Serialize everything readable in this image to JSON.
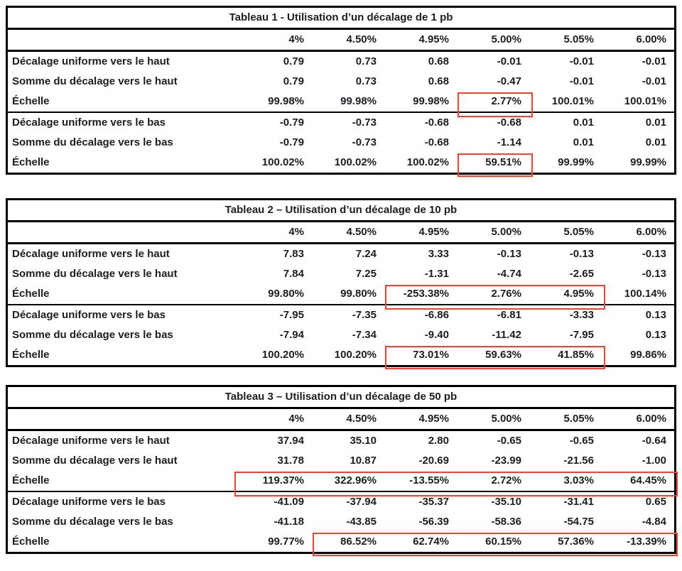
{
  "colors": {
    "text": "#1d1d22",
    "table_border": "#000000",
    "highlight_box": "#f9402f",
    "background": "#ffffff"
  },
  "columns": [
    "4%",
    "4.50%",
    "4.95%",
    "5.00%",
    "5.05%",
    "6.00%"
  ],
  "tables": [
    {
      "title": "Tableau 1 - Utilisation d’un décalage de 1 pb",
      "rows": [
        {
          "label": "Décalage uniforme vers le haut",
          "values": [
            "0.79",
            "0.73",
            "0.68",
            "-0.01",
            "-0.01",
            "-0.01"
          ]
        },
        {
          "label": "Somme du décalage vers le haut",
          "values": [
            "0.79",
            "0.73",
            "0.68",
            "-0.47",
            "-0.01",
            "-0.01"
          ]
        },
        {
          "label": "Échelle",
          "values": [
            "99.98%",
            "99.98%",
            "99.98%",
            "2.77%",
            "100.01%",
            "100.01%"
          ],
          "thick_border_below": true,
          "highlight": {
            "from": 3,
            "to": 3
          }
        },
        {
          "label": "Décalage uniforme vers le bas",
          "values": [
            "-0.79",
            "-0.73",
            "-0.68",
            "-0.68",
            "0.01",
            "0.01"
          ]
        },
        {
          "label": "Somme du décalage vers le bas",
          "values": [
            "-0.79",
            "-0.73",
            "-0.68",
            "-1.14",
            "0.01",
            "0.01"
          ]
        },
        {
          "label": "Échelle",
          "values": [
            "100.02%",
            "100.02%",
            "100.02%",
            "59.51%",
            "99.99%",
            "99.99%"
          ],
          "highlight": {
            "from": 3,
            "to": 3
          }
        }
      ]
    },
    {
      "title": "Tableau 2 – Utilisation d’un décalage de 10 pb",
      "rows": [
        {
          "label": "Décalage uniforme vers le haut",
          "values": [
            "7.83",
            "7.24",
            "3.33",
            "-0.13",
            "-0.13",
            "-0.13"
          ]
        },
        {
          "label": "Somme du décalage vers le haut",
          "values": [
            "7.84",
            "7.25",
            "-1.31",
            "-4.74",
            "-2.65",
            "-0.13"
          ]
        },
        {
          "label": "Échelle",
          "values": [
            "99.80%",
            "99.80%",
            "-253.38%",
            "2.76%",
            "4.95%",
            "100.14%"
          ],
          "thick_border_below": true,
          "highlight": {
            "from": 2,
            "to": 4
          }
        },
        {
          "label": "Décalage uniforme vers le bas",
          "values": [
            "-7.95",
            "-7.35",
            "-6.86",
            "-6.81",
            "-3.33",
            "0.13"
          ]
        },
        {
          "label": "Somme du décalage vers le bas",
          "values": [
            "-7.94",
            "-7.34",
            "-9.40",
            "-11.42",
            "-7.95",
            "0.13"
          ]
        },
        {
          "label": "Échelle",
          "values": [
            "100.20%",
            "100.20%",
            "73.01%",
            "59.63%",
            "41.85%",
            "99.86%"
          ],
          "highlight": {
            "from": 2,
            "to": 4
          }
        }
      ]
    },
    {
      "title": "Tableau 3 – Utilisation d’un décalage de 50 pb",
      "rows": [
        {
          "label": "Décalage uniforme vers le haut",
          "values": [
            "37.94",
            "35.10",
            "2.80",
            "-0.65",
            "-0.65",
            "-0.64"
          ]
        },
        {
          "label": "Somme du décalage vers le haut",
          "values": [
            "31.78",
            "10.87",
            "-20.69",
            "-23.99",
            "-21.56",
            "-1.00"
          ]
        },
        {
          "label": "Échelle",
          "values": [
            "119.37%",
            "322.96%",
            "-13.55%",
            "2.72%",
            "3.03%",
            "64.45%"
          ],
          "thick_border_below": true,
          "highlight": {
            "from": 0,
            "to": 5
          }
        },
        {
          "label": "Décalage uniforme vers le bas",
          "values": [
            "-41.09",
            "-37.94",
            "-35.37",
            "-35.10",
            "-31.41",
            "0.65"
          ]
        },
        {
          "label": "Somme du décalage vers le bas",
          "values": [
            "-41.18",
            "-43.85",
            "-56.39",
            "-58.36",
            "-54.75",
            "-4.84"
          ]
        },
        {
          "label": "Échelle",
          "values": [
            "99.77%",
            "86.52%",
            "62.74%",
            "60.15%",
            "57.36%",
            "-13.39%"
          ],
          "highlight": {
            "from": 1,
            "to": 5
          }
        }
      ]
    }
  ]
}
